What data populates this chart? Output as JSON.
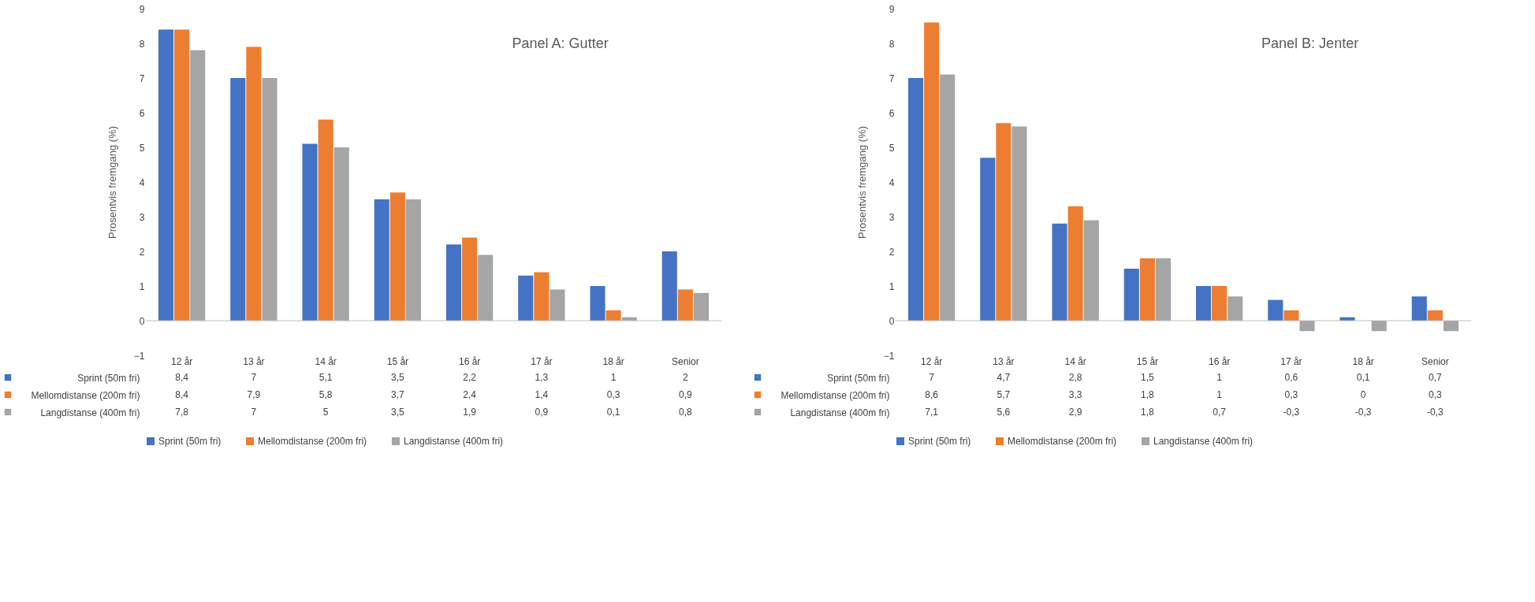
{
  "chart_data": [
    {
      "type": "bar",
      "title": "Panel A: Gutter",
      "ylabel": "Prosentvis fremgang (%)",
      "categories": [
        "12 år",
        "13 år",
        "14 år",
        "15 år",
        "16 år",
        "17 år",
        "18 år",
        "Senior"
      ],
      "ylim": [
        -1,
        9
      ],
      "yticks": [
        -1,
        0,
        1,
        2,
        3,
        4,
        5,
        6,
        7,
        8,
        9
      ],
      "legend": "bottom",
      "series": [
        {
          "name": "Sprint (50m fri)",
          "color": "#4472c4",
          "values": [
            8.4,
            7,
            5.1,
            3.5,
            2.2,
            1.3,
            1,
            2
          ],
          "value_labels": [
            "8,4",
            "7",
            "5,1",
            "3,5",
            "2,2",
            "1,3",
            "1",
            "2"
          ]
        },
        {
          "name": "Mellomdistanse (200m fri)",
          "color": "#ed7d31",
          "values": [
            8.4,
            7.9,
            5.8,
            3.7,
            2.4,
            1.4,
            0.3,
            0.9
          ],
          "value_labels": [
            "8,4",
            "7,9",
            "5,8",
            "3,7",
            "2,4",
            "1,4",
            "0,3",
            "0,9"
          ]
        },
        {
          "name": "Langdistanse (400m fri)",
          "color": "#a5a5a5",
          "values": [
            7.8,
            7,
            5,
            3.5,
            1.9,
            0.9,
            0.1,
            0.8
          ],
          "value_labels": [
            "7,8",
            "7",
            "5",
            "3,5",
            "1,9",
            "0,9",
            "0,1",
            "0,8"
          ]
        }
      ]
    },
    {
      "type": "bar",
      "title": "Panel B: Jenter",
      "ylabel": "Prosentvis fremgang (%)",
      "categories": [
        "12 år",
        "13 år",
        "14 år",
        "15 år",
        "16 år",
        "17 år",
        "18 år",
        "Senior"
      ],
      "ylim": [
        -1,
        9
      ],
      "yticks": [
        -1,
        0,
        1,
        2,
        3,
        4,
        5,
        6,
        7,
        8,
        9
      ],
      "legend": "bottom",
      "series": [
        {
          "name": "Sprint (50m fri)",
          "color": "#4472c4",
          "values": [
            7,
            4.7,
            2.8,
            1.5,
            1,
            0.6,
            0.1,
            0.7
          ],
          "value_labels": [
            "7",
            "4,7",
            "2,8",
            "1,5",
            "1",
            "0,6",
            "0,1",
            "0,7"
          ]
        },
        {
          "name": "Mellomdistanse (200m fri)",
          "color": "#ed7d31",
          "values": [
            8.6,
            5.7,
            3.3,
            1.8,
            1,
            0.3,
            0,
            0.3
          ],
          "value_labels": [
            "8,6",
            "5,7",
            "3,3",
            "1,8",
            "1",
            "0,3",
            "0",
            "0,3"
          ]
        },
        {
          "name": "Langdistanse (400m fri)",
          "color": "#a5a5a5",
          "values": [
            7.1,
            5.6,
            2.9,
            1.8,
            0.7,
            -0.3,
            -0.3,
            -0.3
          ],
          "value_labels": [
            "7,1",
            "5,6",
            "2,9",
            "1,8",
            "0,7",
            "-0,3",
            "-0,3",
            "-0,3"
          ]
        }
      ]
    }
  ]
}
